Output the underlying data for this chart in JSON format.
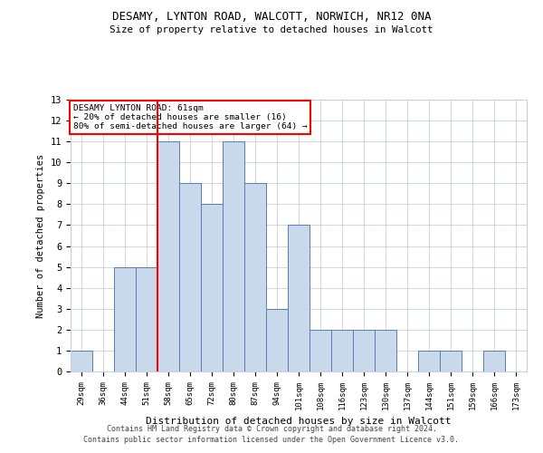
{
  "title": "DESAMY, LYNTON ROAD, WALCOTT, NORWICH, NR12 0NA",
  "subtitle": "Size of property relative to detached houses in Walcott",
  "xlabel": "Distribution of detached houses by size in Walcott",
  "ylabel": "Number of detached properties",
  "categories": [
    "29sqm",
    "36sqm",
    "44sqm",
    "51sqm",
    "58sqm",
    "65sqm",
    "72sqm",
    "80sqm",
    "87sqm",
    "94sqm",
    "101sqm",
    "108sqm",
    "116sqm",
    "123sqm",
    "130sqm",
    "137sqm",
    "144sqm",
    "151sqm",
    "159sqm",
    "166sqm",
    "173sqm"
  ],
  "values": [
    1,
    0,
    5,
    5,
    11,
    9,
    8,
    11,
    9,
    3,
    7,
    2,
    2,
    2,
    2,
    0,
    1,
    1,
    0,
    1,
    0
  ],
  "bar_color": "#c9d9ec",
  "bar_edge_color": "#5b7dab",
  "red_line_index": 4,
  "annotation_title": "DESAMY LYNTON ROAD: 61sqm",
  "annotation_line1": "← 20% of detached houses are smaller (16)",
  "annotation_line2": "80% of semi-detached houses are larger (64) →",
  "annotation_box_color": "white",
  "annotation_box_edge_color": "red",
  "ylim": [
    0,
    13
  ],
  "yticks": [
    0,
    1,
    2,
    3,
    4,
    5,
    6,
    7,
    8,
    9,
    10,
    11,
    12,
    13
  ],
  "grid_color": "#c8d0dc",
  "background_color": "white",
  "footer1": "Contains HM Land Registry data © Crown copyright and database right 2024.",
  "footer2": "Contains public sector information licensed under the Open Government Licence v3.0."
}
